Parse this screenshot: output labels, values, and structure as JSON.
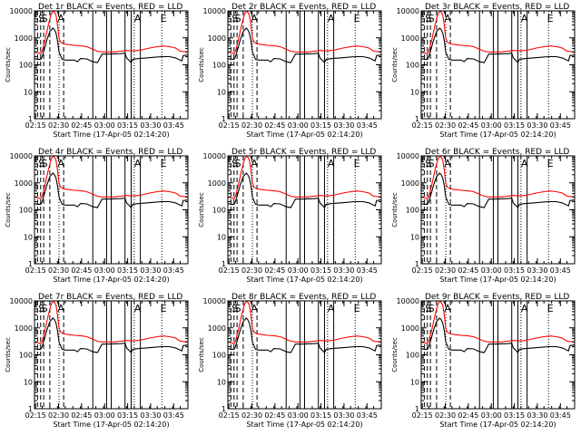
{
  "chart_data": {
    "type": "line",
    "layout": {
      "rows": 3,
      "cols": 3
    },
    "shared": {
      "ylabel": "Counts/sec",
      "xlabel": "Start Time (17-Apr-05 02:14:20)",
      "yscale": "log",
      "ylim": [
        1,
        10000
      ],
      "xlim_minutes": [
        0,
        100
      ],
      "y_ticks": [
        {
          "value": 1,
          "label": "1"
        },
        {
          "value": 10,
          "label": "10"
        },
        {
          "value": 100,
          "label": "100"
        },
        {
          "value": 1000,
          "label": "1000"
        },
        {
          "value": 10000,
          "label": "10000"
        }
      ],
      "x_ticks": [
        {
          "t": 0.7,
          "label": "02:15"
        },
        {
          "t": 15.7,
          "label": "02:30"
        },
        {
          "t": 30.7,
          "label": "02:45"
        },
        {
          "t": 45.7,
          "label": "03:00"
        },
        {
          "t": 60.7,
          "label": "03:15"
        },
        {
          "t": 75.7,
          "label": "03:30"
        },
        {
          "t": 90.7,
          "label": "03:45"
        }
      ],
      "legend_note": "BLACK = Events, RED = LLD",
      "markers": {
        "label_s": "S",
        "label_a": "A",
        "label_e": "E",
        "dashed_times": [
          2,
          4,
          6,
          10,
          19
        ],
        "solid_times": [
          38,
          47,
          50,
          59,
          63,
          69
        ],
        "dotted_times": [
          16,
          65,
          83
        ],
        "s_times": [
          2.5,
          4.5
        ],
        "a_times": [
          15,
          65
        ],
        "e_time": [
          82
        ]
      },
      "series_colors": {
        "Events": "#000000",
        "LLD": "#ff0000"
      },
      "series": [
        {
          "name": "LLD",
          "points": [
            [
              0,
              300
            ],
            [
              2,
              280
            ],
            [
              4,
              260
            ],
            [
              5,
              320
            ],
            [
              7,
              900
            ],
            [
              9,
              3000
            ],
            [
              11,
              8000
            ],
            [
              12.5,
              10000
            ],
            [
              14,
              7000
            ],
            [
              15,
              3000
            ],
            [
              16,
              1000
            ],
            [
              17,
              700
            ],
            [
              19,
              600
            ],
            [
              22,
              560
            ],
            [
              26,
              530
            ],
            [
              30,
              510
            ],
            [
              34,
              470
            ],
            [
              38,
              380
            ],
            [
              41,
              320
            ],
            [
              44,
              300
            ],
            [
              48,
              300
            ],
            [
              52,
              300
            ],
            [
              56,
              320
            ],
            [
              60,
              340
            ],
            [
              63,
              330
            ],
            [
              66,
              330
            ],
            [
              70,
              360
            ],
            [
              75,
              420
            ],
            [
              80,
              470
            ],
            [
              84,
              500
            ],
            [
              88,
              470
            ],
            [
              92,
              420
            ],
            [
              95,
              320
            ],
            [
              100,
              300
            ]
          ]
        },
        {
          "name": "Events",
          "points": [
            [
              0,
              170
            ],
            [
              2,
              160
            ],
            [
              4,
              160
            ],
            [
              5,
              200
            ],
            [
              6.5,
              400
            ],
            [
              8,
              800
            ],
            [
              10,
              1700
            ],
            [
              12,
              2300
            ],
            [
              13,
              2000
            ],
            [
              14,
              1500
            ],
            [
              15,
              800
            ],
            [
              16,
              300
            ],
            [
              17,
              220
            ],
            [
              18,
              160
            ],
            [
              20,
              150
            ],
            [
              23,
              150
            ],
            [
              26,
              150
            ],
            [
              28,
              130
            ],
            [
              30,
              170
            ],
            [
              34,
              165
            ],
            [
              38,
              130
            ],
            [
              41,
              120
            ],
            [
              44,
              250
            ],
            [
              48,
              250
            ],
            [
              52,
              255
            ],
            [
              56,
              260
            ],
            [
              59,
              270
            ],
            [
              60,
              180
            ],
            [
              62,
              140
            ],
            [
              63,
              120
            ],
            [
              64,
              160
            ],
            [
              68,
              170
            ],
            [
              73,
              180
            ],
            [
              78,
              190
            ],
            [
              83,
              200
            ],
            [
              88,
              200
            ],
            [
              92,
              180
            ],
            [
              96,
              140
            ],
            [
              97,
              220
            ],
            [
              100,
              230
            ]
          ]
        }
      ]
    },
    "panels": [
      {
        "title": "Det 1r BLACK = Events, RED = LLD"
      },
      {
        "title": "Det 2r BLACK = Events, RED = LLD"
      },
      {
        "title": "Det 3r BLACK = Events, RED = LLD"
      },
      {
        "title": "Det 4r BLACK = Events, RED = LLD"
      },
      {
        "title": "Det 5r BLACK = Events, RED = LLD"
      },
      {
        "title": "Det 6r BLACK = Events, RED = LLD"
      },
      {
        "title": "Det 7r BLACK = Events, RED = LLD"
      },
      {
        "title": "Det 8r BLACK = Events, RED = LLD"
      },
      {
        "title": "Det 9r BLACK = Events, RED = LLD"
      }
    ]
  }
}
